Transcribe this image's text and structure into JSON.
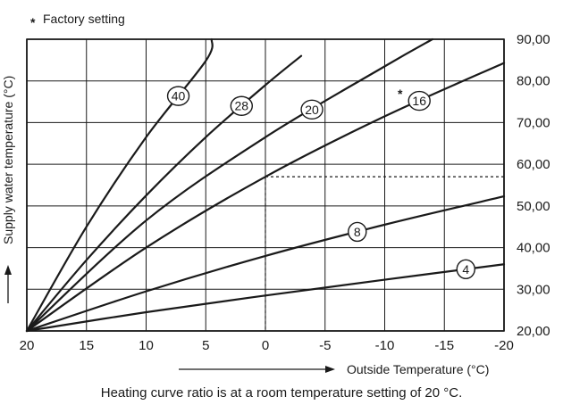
{
  "note": {
    "marker": "*",
    "text": "Factory setting"
  },
  "caption": "Heating curve ratio is at a room temperature setting of 20 °C.",
  "chart_data": {
    "type": "line",
    "xlabel": "Outside Temperature (°C)",
    "ylabel": "Supply water temperature (°C)",
    "xlim": [
      20,
      -20
    ],
    "ylim": [
      20,
      90
    ],
    "x_ticks": [
      "20",
      "15",
      "10",
      "5",
      "0",
      "-5",
      "-10",
      "-15",
      "-20"
    ],
    "y_ticks": [
      "20,00",
      "30,00",
      "40,00",
      "50,00",
      "60,00",
      "70,00",
      "80,00",
      "90,00"
    ],
    "grid": true,
    "series": [
      {
        "name": "4",
        "x": [
          20,
          10,
          0,
          -10,
          -20
        ],
        "y": [
          20,
          24.5,
          28.5,
          32.3,
          36
        ]
      },
      {
        "name": "8",
        "x": [
          20,
          10,
          0,
          -10,
          -20
        ],
        "y": [
          20,
          29.5,
          38,
          45.5,
          52.3
        ]
      },
      {
        "name": "16",
        "x": [
          20,
          10,
          0,
          -10,
          -20
        ],
        "y": [
          20,
          40,
          57,
          71.5,
          84.3
        ]
      },
      {
        "name": "20",
        "x": [
          20,
          10,
          0,
          -10,
          -14
        ],
        "y": [
          20,
          46.5,
          66.5,
          83.5,
          90
        ]
      },
      {
        "name": "28",
        "x": [
          20,
          15,
          10,
          5,
          0,
          -3
        ],
        "y": [
          20,
          37,
          52.5,
          66.5,
          79,
          86
        ]
      },
      {
        "name": "40",
        "x": [
          20,
          15,
          10,
          5,
          4.5
        ],
        "y": [
          20,
          45,
          66.5,
          84.8,
          90
        ]
      }
    ],
    "factory_setting": "16",
    "reference_lines": {
      "x": 0,
      "y": 57
    }
  }
}
